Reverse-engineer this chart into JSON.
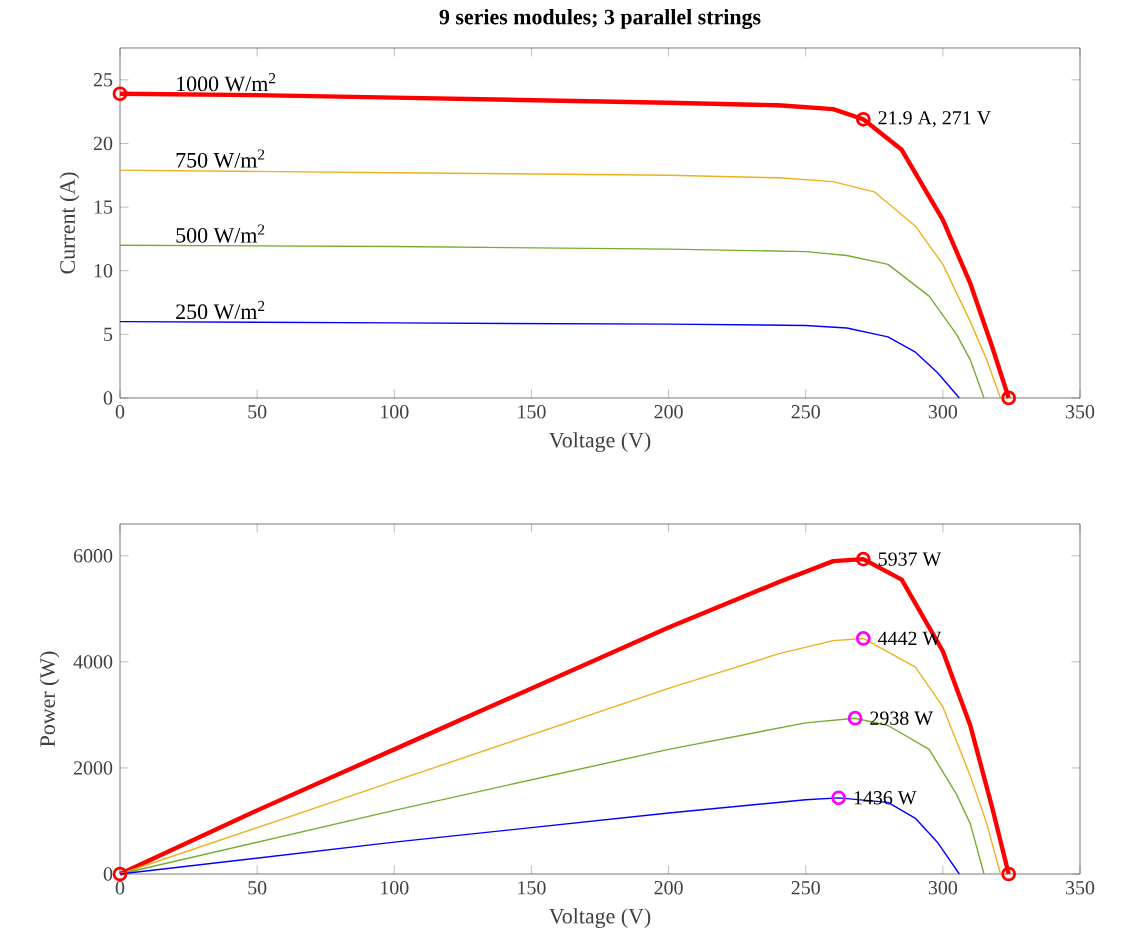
{
  "chart_data": [
    {
      "type": "line",
      "title": "9 series modules; 3 parallel strings",
      "xlabel": "Voltage (V)",
      "ylabel": "Current (A)",
      "xlim": [
        0,
        350
      ],
      "xticks": [
        0,
        50,
        100,
        150,
        200,
        250,
        300,
        350
      ],
      "ylim": [
        0,
        27.5
      ],
      "yticks": [
        0,
        5,
        10,
        15,
        20,
        25
      ],
      "grid": false,
      "legend": false,
      "series": [
        {
          "name": "1000 W/m$^{2}$",
          "color": "#ff0000",
          "x": [
            0,
            50,
            100,
            150,
            200,
            240,
            260,
            271,
            285,
            300,
            310,
            318,
            324
          ],
          "values": [
            23.9,
            23.8,
            23.6,
            23.4,
            23.2,
            23.0,
            22.7,
            21.9,
            19.5,
            14,
            9,
            4,
            0
          ]
        },
        {
          "name": "750 W/m$^{2}$",
          "color": "#edb120",
          "x": [
            0,
            100,
            200,
            240,
            260,
            275,
            290,
            300,
            310,
            316,
            321
          ],
          "values": [
            17.9,
            17.7,
            17.5,
            17.3,
            17.0,
            16.2,
            13.5,
            10.5,
            6,
            3,
            0
          ]
        },
        {
          "name": "500 W/m$^{2}$",
          "color": "#77ac30",
          "x": [
            0,
            100,
            200,
            250,
            265,
            280,
            295,
            305,
            310,
            315
          ],
          "values": [
            12,
            11.9,
            11.7,
            11.5,
            11.2,
            10.5,
            8,
            5,
            3,
            0
          ]
        },
        {
          "name": "250 W/m$^{2}$",
          "color": "#0000ff",
          "x": [
            0,
            100,
            200,
            250,
            265,
            280,
            290,
            298,
            306
          ],
          "values": [
            6,
            5.9,
            5.8,
            5.7,
            5.5,
            4.8,
            3.6,
            2,
            0
          ]
        },
        {
          "type": "scatter",
          "marker": "circle",
          "color": "#ff0000",
          "x": [
            0,
            271,
            324
          ],
          "values": [
            23.9,
            21.9,
            0
          ]
        }
      ],
      "annotations": [
        {
          "text": "21.9 A, 271 V",
          "x": 271,
          "y": 21.9
        }
      ]
    },
    {
      "type": "line",
      "xlabel": "Voltage (V)",
      "ylabel": "Power (W)",
      "xlim": [
        0,
        350
      ],
      "xticks": [
        0,
        50,
        100,
        150,
        200,
        250,
        300,
        350
      ],
      "ylim": [
        0,
        6600
      ],
      "yticks": [
        0,
        2000,
        4000,
        6000
      ],
      "grid": false,
      "legend": false,
      "series": [
        {
          "color": "#ff0000",
          "x": [
            0,
            50,
            100,
            150,
            200,
            240,
            260,
            271,
            285,
            300,
            310,
            318,
            324
          ],
          "values": [
            0,
            1200,
            2350,
            3500,
            4650,
            5500,
            5900,
            5937,
            5550,
            4200,
            2800,
            1250,
            0
          ]
        },
        {
          "color": "#edb120",
          "x": [
            0,
            100,
            200,
            240,
            260,
            271,
            290,
            300,
            310,
            316,
            321
          ],
          "values": [
            0,
            1750,
            3500,
            4150,
            4400,
            4442,
            3900,
            3150,
            1850,
            950,
            0
          ]
        },
        {
          "color": "#77ac30",
          "x": [
            0,
            100,
            200,
            250,
            268,
            280,
            295,
            305,
            310,
            315
          ],
          "values": [
            0,
            1200,
            2350,
            2850,
            2938,
            2800,
            2350,
            1500,
            950,
            0
          ]
        },
        {
          "color": "#0000ff",
          "x": [
            0,
            100,
            200,
            250,
            262,
            280,
            290,
            298,
            306
          ],
          "values": [
            0,
            600,
            1150,
            1400,
            1436,
            1350,
            1050,
            600,
            0
          ]
        },
        {
          "type": "scatter",
          "marker": "circle",
          "color": "#ff0000",
          "x": [
            0,
            271,
            324
          ],
          "values": [
            0,
            5937,
            0
          ]
        },
        {
          "type": "scatter",
          "marker": "circle",
          "color": "#ff00ff",
          "x": [
            271,
            268,
            262
          ],
          "values": [
            4442,
            2938,
            1436
          ]
        }
      ],
      "annotations": [
        {
          "text": "5937 W",
          "x": 271,
          "y": 5937
        },
        {
          "text": "4442 W",
          "x": 271,
          "y": 4442
        },
        {
          "text": "2938 W",
          "x": 268,
          "y": 2938
        },
        {
          "text": "1436 W",
          "x": 262,
          "y": 1436
        }
      ]
    }
  ]
}
